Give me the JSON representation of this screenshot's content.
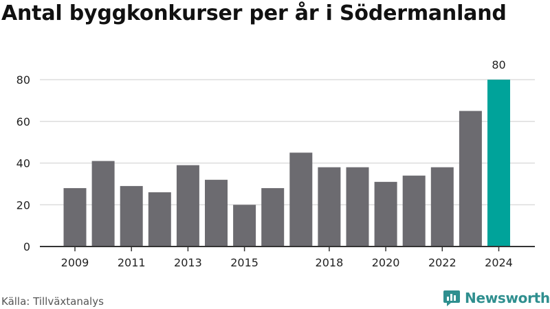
{
  "title": "Antal byggkonkurser per år i Södermanland",
  "source": "Källa: Tillväxtanalys",
  "brand": {
    "name": "Newsworthy",
    "icon": "newsworthy-chat-bubble-icon"
  },
  "colors": {
    "bar": "#6c6b70",
    "highlight": "#00a39a",
    "grid": "#dddddd",
    "axis": "#333333",
    "text": "#222222",
    "brand": "#2f8f8f"
  },
  "chart_data": {
    "type": "bar",
    "title": "Antal byggkonkurser per år i Södermanland",
    "xlabel": "",
    "ylabel": "",
    "years": [
      2009,
      2010,
      2011,
      2012,
      2013,
      2014,
      2015,
      2016,
      2017,
      2018,
      2019,
      2020,
      2021,
      2022,
      2023,
      2024
    ],
    "values": [
      28,
      41,
      29,
      26,
      39,
      32,
      20,
      28,
      45,
      38,
      38,
      31,
      34,
      38,
      65,
      80
    ],
    "x_tick_labels": [
      "2009",
      "2011",
      "2013",
      "2015",
      "2018",
      "2020",
      "2022",
      "2024"
    ],
    "y_ticks": [
      "0",
      "20",
      "40",
      "60",
      "80"
    ],
    "ylim": [
      0,
      80
    ],
    "grid": true,
    "highlight_year": 2024,
    "value_labels": [
      {
        "year": 2024,
        "text": "80"
      }
    ]
  }
}
